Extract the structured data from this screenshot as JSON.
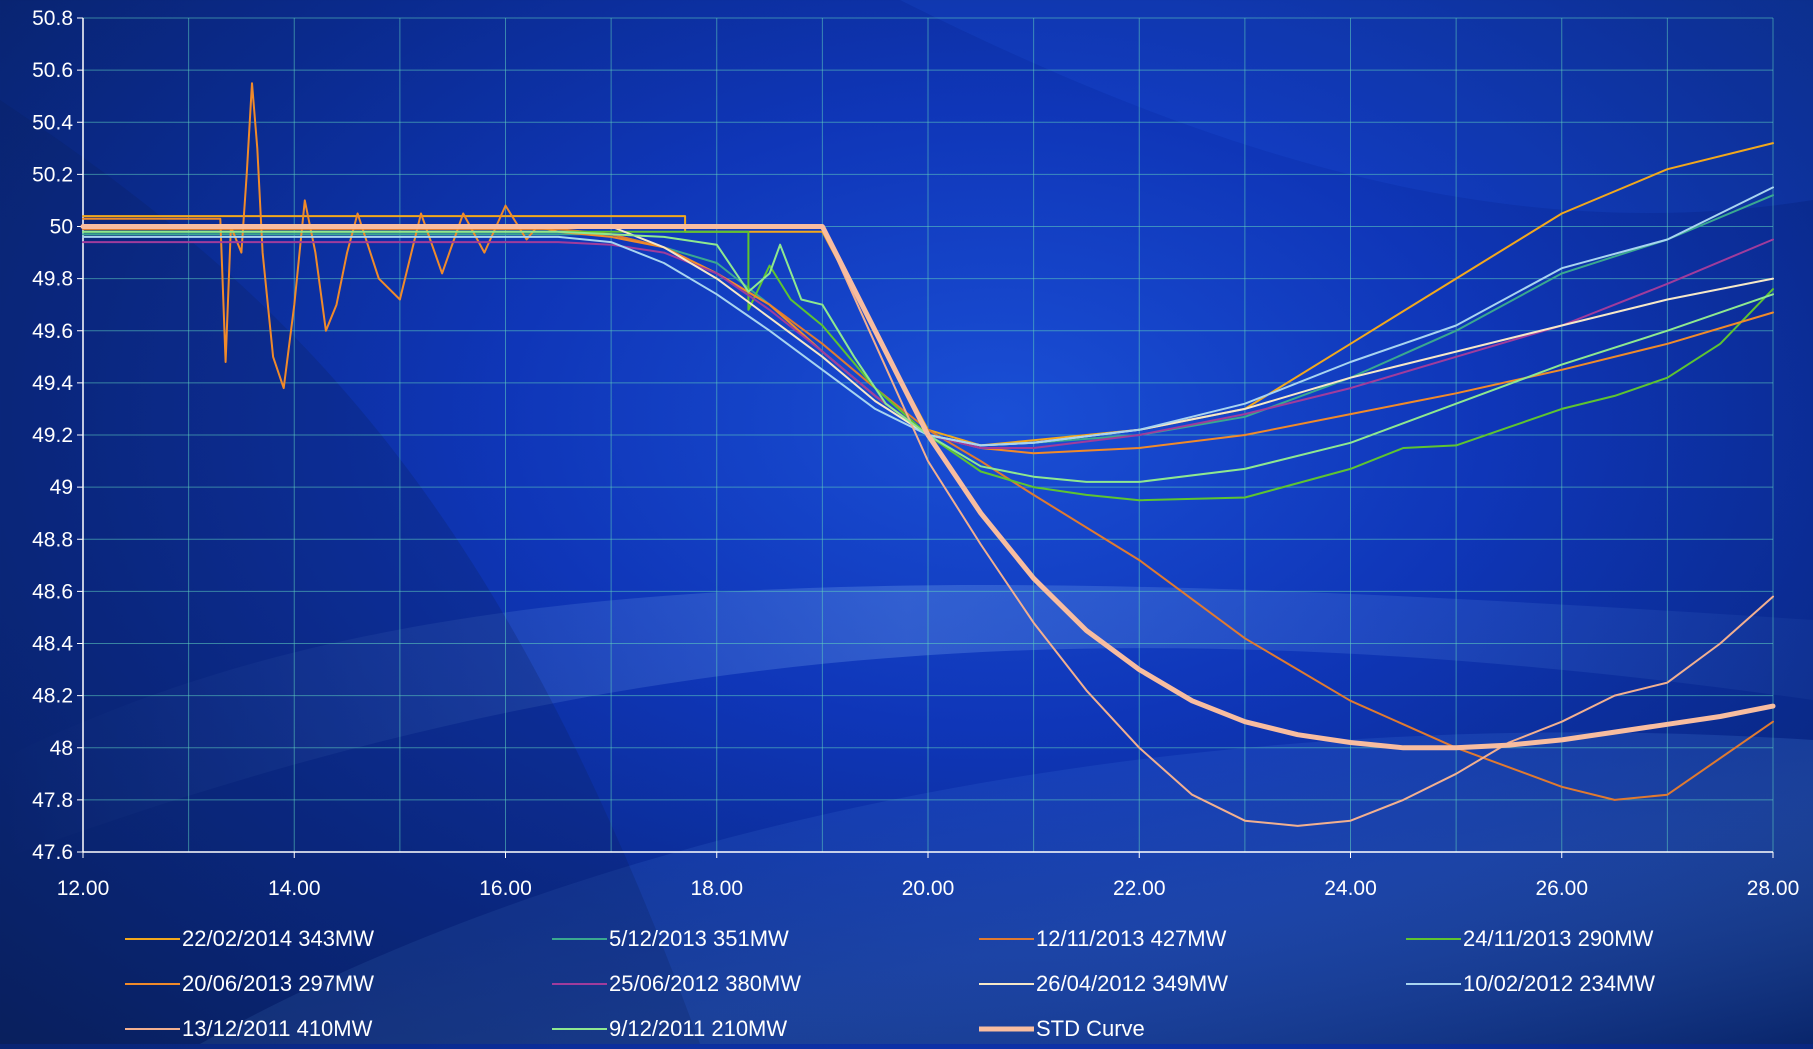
{
  "chart_data": {
    "type": "line",
    "title": "",
    "xlabel": "",
    "ylabel": "",
    "xlim": [
      12,
      28
    ],
    "ylim": [
      47.6,
      50.8
    ],
    "grid": true,
    "legend_position": "bottom",
    "x_ticks": [
      "12.00",
      "14.00",
      "16.00",
      "18.00",
      "20.00",
      "22.00",
      "24.00",
      "26.00",
      "28.00"
    ],
    "y_ticks": [
      "47.6",
      "47.8",
      "48",
      "48.2",
      "48.4",
      "48.6",
      "48.8",
      "49",
      "49.2",
      "49.4",
      "49.6",
      "49.8",
      "50",
      "50.2",
      "50.4",
      "50.6",
      "50.8"
    ],
    "series": [
      {
        "name": "22/02/2014  343MW",
        "color": "#f2a81d",
        "width": 2,
        "x": [
          12,
          17.7,
          17.7,
          19,
          19.5,
          20,
          20.5,
          21,
          22,
          23,
          24,
          25,
          26,
          27,
          28
        ],
        "y": [
          50.04,
          50.04,
          49.98,
          49.98,
          49.6,
          49.22,
          49.16,
          49.18,
          49.22,
          49.3,
          49.55,
          49.8,
          50.05,
          50.22,
          50.32
        ]
      },
      {
        "name": "5/12/2013  351MW",
        "color": "#3aa890",
        "width": 2,
        "x": [
          12,
          16.5,
          17,
          17.5,
          18,
          18.5,
          19,
          19.5,
          20,
          20.5,
          21,
          22,
          23,
          24,
          25,
          26,
          27,
          28
        ],
        "y": [
          49.97,
          49.97,
          49.97,
          49.92,
          49.86,
          49.7,
          49.52,
          49.35,
          49.2,
          49.16,
          49.17,
          49.2,
          49.27,
          49.42,
          49.6,
          49.82,
          49.95,
          50.12
        ]
      },
      {
        "name": "12/11/2013  427MW",
        "color": "#e07a30",
        "width": 2,
        "x": [
          12,
          16.5,
          17,
          17.5,
          18,
          18.5,
          19,
          19.5,
          20,
          20.5,
          21,
          22,
          23,
          24,
          25,
          26,
          26.5,
          27,
          28
        ],
        "y": [
          49.99,
          49.99,
          49.97,
          49.92,
          49.82,
          49.7,
          49.55,
          49.38,
          49.22,
          49.1,
          48.97,
          48.72,
          48.42,
          48.18,
          48.0,
          47.85,
          47.8,
          47.82,
          48.1
        ]
      },
      {
        "name": "24/11/2013  290MW",
        "color": "#5ec430",
        "width": 2,
        "x": [
          12,
          18.3,
          18.3,
          18.5,
          18.7,
          19,
          19.5,
          20,
          20.5,
          21,
          21.5,
          22,
          23,
          24,
          24.5,
          25,
          25.5,
          26,
          26.5,
          27,
          27.5,
          28
        ],
        "y": [
          49.98,
          49.98,
          49.68,
          49.85,
          49.72,
          49.62,
          49.38,
          49.2,
          49.06,
          49.0,
          48.97,
          48.95,
          48.96,
          49.07,
          49.15,
          49.16,
          49.23,
          49.3,
          49.35,
          49.42,
          49.55,
          49.76
        ]
      },
      {
        "name": "20/06/2013  297MW",
        "color": "#f08a2a",
        "width": 2,
        "x": [
          12,
          13.3,
          13.35,
          13.4,
          13.5,
          13.55,
          13.6,
          13.65,
          13.7,
          13.8,
          13.9,
          14.0,
          14.1,
          14.2,
          14.3,
          14.4,
          14.5,
          14.6,
          14.8,
          15.0,
          15.2,
          15.4,
          15.6,
          15.8,
          16.0,
          16.2,
          16.3,
          16.5,
          17,
          17.5,
          18,
          18.5,
          19,
          19.5,
          20,
          20.5,
          21,
          22,
          23,
          24,
          25,
          26,
          27,
          28
        ],
        "y": [
          50.03,
          50.03,
          49.48,
          50.0,
          49.9,
          50.2,
          50.55,
          50.3,
          49.9,
          49.5,
          49.38,
          49.7,
          50.1,
          49.9,
          49.6,
          49.7,
          49.9,
          50.05,
          49.8,
          49.72,
          50.05,
          49.82,
          50.05,
          49.9,
          50.08,
          49.95,
          50.0,
          49.98,
          49.96,
          49.92,
          49.82,
          49.7,
          49.52,
          49.35,
          49.2,
          49.15,
          49.13,
          49.15,
          49.2,
          49.28,
          49.36,
          49.45,
          49.55,
          49.67
        ]
      },
      {
        "name": "25/06/2012  380MW",
        "color": "#a03c9c",
        "width": 2,
        "x": [
          12,
          16.5,
          17,
          17.5,
          18,
          18.5,
          19,
          19.5,
          20,
          20.5,
          21,
          22,
          23,
          24,
          25,
          26,
          27,
          28
        ],
        "y": [
          49.94,
          49.94,
          49.93,
          49.9,
          49.82,
          49.68,
          49.52,
          49.35,
          49.2,
          49.15,
          49.15,
          49.2,
          49.28,
          49.38,
          49.5,
          49.62,
          49.78,
          49.95
        ]
      },
      {
        "name": "26/04/2012  349MW",
        "color": "#f6e8c8",
        "width": 2,
        "x": [
          12,
          17,
          17.5,
          18,
          18.5,
          19,
          19.5,
          20,
          20.5,
          21,
          22,
          23,
          24,
          25,
          26,
          27,
          28
        ],
        "y": [
          50.0,
          50.0,
          49.92,
          49.8,
          49.65,
          49.5,
          49.33,
          49.2,
          49.16,
          49.17,
          49.22,
          49.3,
          49.42,
          49.52,
          49.62,
          49.72,
          49.8
        ]
      },
      {
        "name": "10/02/2012  234MW",
        "color": "#a8d4f0",
        "width": 2,
        "x": [
          12,
          16.5,
          17,
          17.5,
          18,
          18.5,
          19,
          19.5,
          20,
          20.5,
          21,
          22,
          23,
          24,
          25,
          26,
          27,
          28
        ],
        "y": [
          49.96,
          49.96,
          49.94,
          49.86,
          49.74,
          49.6,
          49.45,
          49.3,
          49.2,
          49.16,
          49.17,
          49.22,
          49.32,
          49.48,
          49.62,
          49.84,
          49.95,
          50.15
        ]
      },
      {
        "name": "13/12/2011  410MW",
        "color": "#f2b090",
        "width": 2,
        "x": [
          12,
          19,
          19.5,
          20,
          20.5,
          21,
          21.5,
          22,
          22.5,
          23,
          23.5,
          24,
          24.5,
          25,
          25.5,
          26,
          26.5,
          27,
          27.5,
          28
        ],
        "y": [
          50.0,
          50.0,
          49.55,
          49.1,
          48.78,
          48.48,
          48.22,
          48.0,
          47.82,
          47.72,
          47.7,
          47.72,
          47.8,
          47.9,
          48.02,
          48.1,
          48.2,
          48.25,
          48.4,
          48.58
        ]
      },
      {
        "name": "9/12/2011 210MW",
        "color": "#8ee890",
        "width": 2,
        "x": [
          12,
          16.5,
          17,
          17.5,
          18,
          18.3,
          18.5,
          18.6,
          18.8,
          19,
          19.3,
          19.6,
          20,
          20.5,
          21,
          21.5,
          22,
          23,
          24,
          25,
          26,
          27,
          28
        ],
        "y": [
          49.98,
          49.98,
          49.97,
          49.96,
          49.93,
          49.75,
          49.82,
          49.93,
          49.72,
          49.7,
          49.5,
          49.32,
          49.2,
          49.08,
          49.04,
          49.02,
          49.02,
          49.07,
          49.17,
          49.32,
          49.47,
          49.6,
          49.74
        ]
      },
      {
        "name": "STD Curve",
        "color": "#f8bda0",
        "width": 5,
        "x": [
          12,
          19,
          19.5,
          20,
          20.5,
          21,
          21.5,
          22,
          22.5,
          23,
          23.5,
          24,
          24.5,
          25,
          25.5,
          26,
          26.5,
          27,
          27.5,
          28
        ],
        "y": [
          50.0,
          50.0,
          49.6,
          49.2,
          48.9,
          48.65,
          48.45,
          48.3,
          48.18,
          48.1,
          48.05,
          48.02,
          48.0,
          48.0,
          48.01,
          48.03,
          48.06,
          48.09,
          48.12,
          48.16
        ]
      }
    ]
  }
}
